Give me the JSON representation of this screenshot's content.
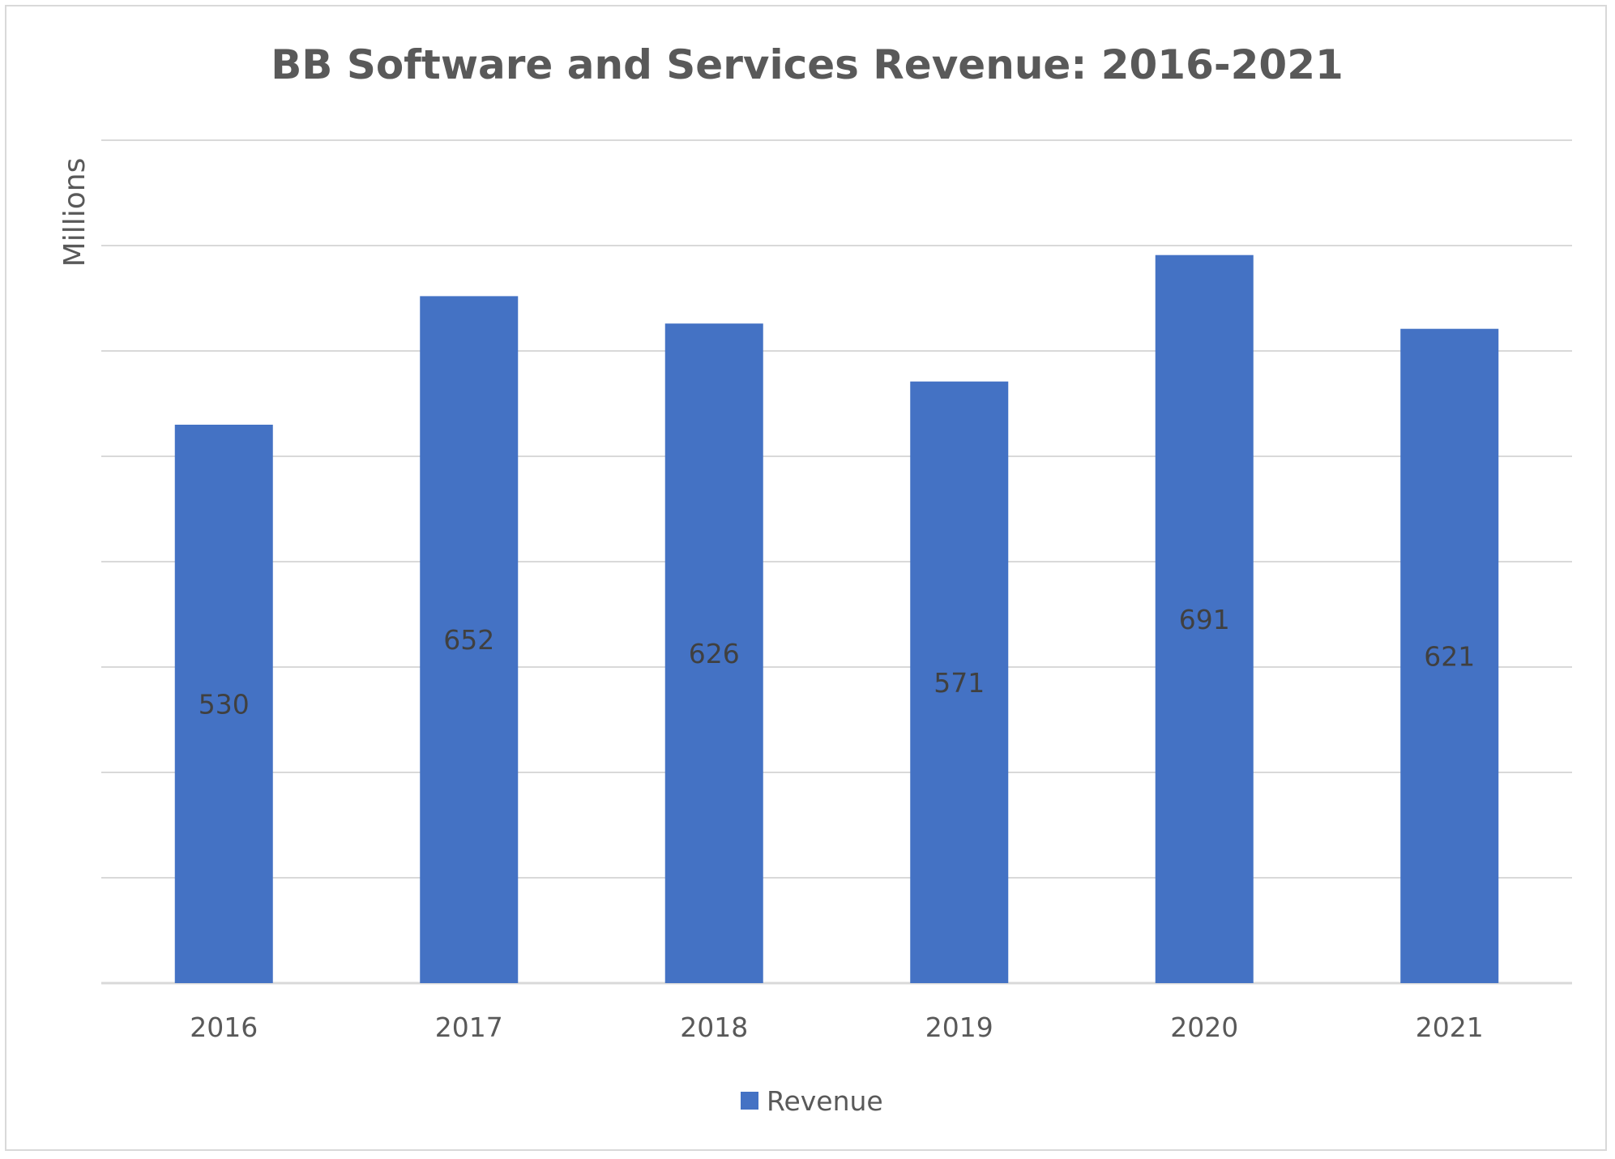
{
  "chart_data": {
    "type": "bar",
    "title": "BB Software and Services Revenue: 2016-2021",
    "xlabel": "",
    "ylabel": "Millions",
    "categories": [
      "2016",
      "2017",
      "2018",
      "2019",
      "2020",
      "2021"
    ],
    "series": [
      {
        "name": "Revenue",
        "values": [
          530,
          652,
          626,
          571,
          691,
          621
        ]
      }
    ],
    "data_labels": [
      "530",
      "652",
      "626",
      "571",
      "691",
      "621"
    ],
    "ylim": [
      0,
      800
    ],
    "y_gridlines": [
      0,
      100,
      200,
      300,
      400,
      500,
      600,
      700,
      800
    ],
    "y_tick_labels_visible": false,
    "grid": true,
    "legend": "bottom",
    "colors": {
      "bar": "#4472C4",
      "gridline": "#d9d9d9",
      "text": "#595959"
    }
  }
}
